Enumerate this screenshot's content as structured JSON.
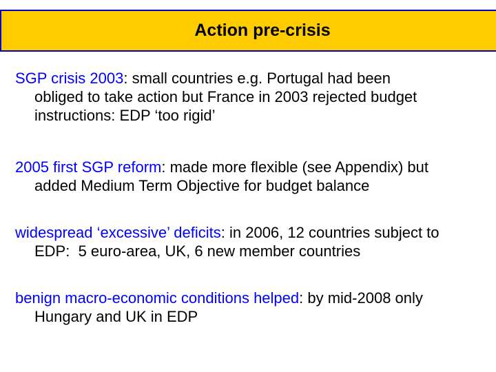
{
  "slide": {
    "title": "Action pre-crisis",
    "colors": {
      "banner_background": "#FFCC00",
      "banner_border": "#0000CC",
      "lead_text": "#0000FF",
      "body_text": "#000000",
      "slide_background": "#FFFFFF"
    },
    "paragraphs": [
      {
        "lead": "SGP crisis 2003",
        "rest": ": small countries e.g. Portugal had been\nobliged to take action but France in 2003 rejected budget\ninstructions: EDP ‘too rigid’"
      },
      {
        "lead": "2005 first SGP reform",
        "rest": ": made more flexible (see Appendix) but\nadded Medium Term Objective for budget balance"
      },
      {
        "lead": "widespread ‘excessive’ deficits",
        "rest": ": in 2006, 12 countries subject to\nEDP:  5 euro-area, UK, 6 new member countries"
      },
      {
        "lead": "benign macro-economic conditions helped",
        "rest": ": by mid-2008 only\nHungary and UK in EDP"
      }
    ]
  }
}
